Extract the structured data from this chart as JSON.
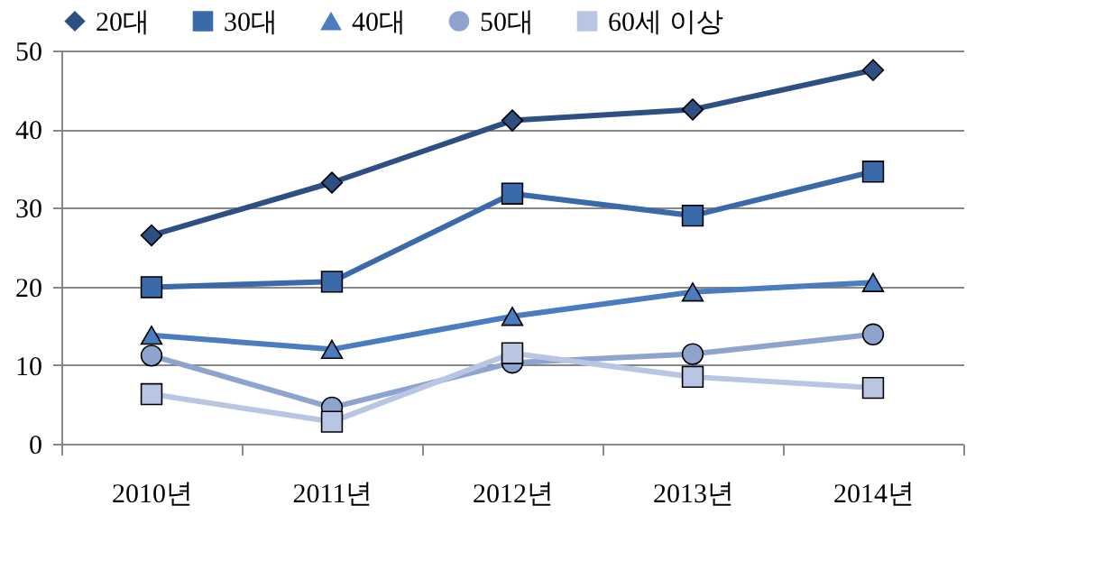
{
  "chart_data": {
    "type": "line",
    "categories": [
      "2010년",
      "2011년",
      "2012년",
      "2013년",
      "2014년"
    ],
    "ylim": [
      0,
      50
    ],
    "yticks": [
      0,
      10,
      20,
      30,
      40,
      50
    ],
    "grid": "y",
    "legend": "top",
    "series": [
      {
        "name": "20대",
        "color": "#2e4f82",
        "marker": "diamond",
        "values": [
          26.5,
          33.2,
          41.1,
          42.5,
          47.5
        ]
      },
      {
        "name": "30대",
        "color": "#3a6aaa",
        "marker": "square",
        "values": [
          19.9,
          20.6,
          31.8,
          29.0,
          34.6
        ]
      },
      {
        "name": "40대",
        "color": "#4a7cc0",
        "marker": "triangle",
        "values": [
          13.8,
          12.0,
          16.2,
          19.3,
          20.5
        ]
      },
      {
        "name": "50대",
        "color": "#8ea4cf",
        "marker": "circle",
        "values": [
          11.2,
          4.6,
          10.3,
          11.4,
          13.9
        ]
      },
      {
        "name": "60세 이상",
        "color": "#b8c6e3",
        "marker": "square",
        "values": [
          6.3,
          2.8,
          11.5,
          8.5,
          7.1
        ]
      }
    ]
  }
}
